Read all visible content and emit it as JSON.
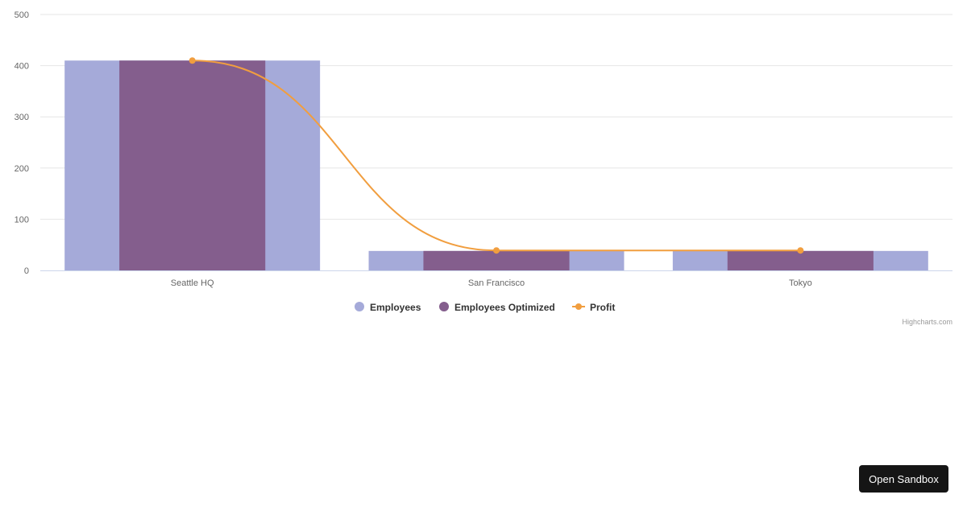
{
  "chart_data": {
    "type": "bar",
    "categories": [
      "Seattle HQ",
      "San Francisco",
      "Tokyo"
    ],
    "ylim": [
      0,
      500
    ],
    "yticks": [
      "0",
      "100",
      "200",
      "300",
      "400",
      "500"
    ],
    "grid": true,
    "legend_position": "bottom-center",
    "series": [
      {
        "name": "Employees",
        "type": "column",
        "values": [
          410,
          38,
          38
        ],
        "color": "#a5aad9"
      },
      {
        "name": "Employees Optimized",
        "type": "column",
        "values": [
          410,
          38,
          38
        ],
        "color": "#845e8d"
      },
      {
        "name": "Profit",
        "type": "spline",
        "values": [
          410,
          39,
          39
        ],
        "color": "#f19e3f"
      }
    ],
    "credits": "Highcharts.com"
  },
  "sandbox_button": {
    "label": "Open Sandbox"
  }
}
